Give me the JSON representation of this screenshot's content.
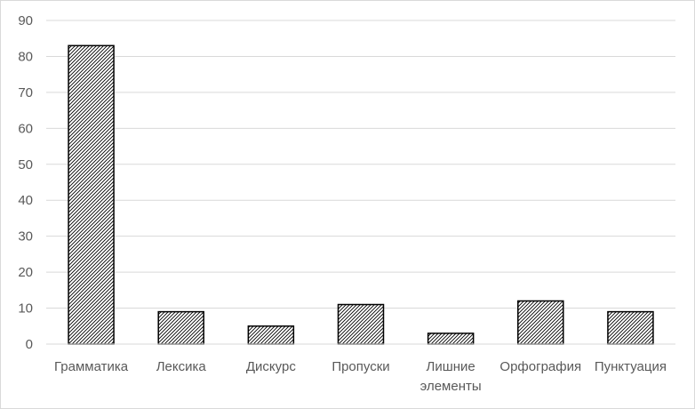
{
  "chart_data": {
    "type": "bar",
    "categories": [
      "Грамматика",
      "Лексика",
      "Дискурс",
      "Пропуски",
      "Лишние элементы",
      "Орфография",
      "Пунктуация"
    ],
    "category_lines": [
      [
        "Грамматика"
      ],
      [
        "Лексика"
      ],
      [
        "Дискурс"
      ],
      [
        "Пропуски"
      ],
      [
        "Лишние",
        "элементы"
      ],
      [
        "Орфография"
      ],
      [
        "Пунктуация"
      ]
    ],
    "values": [
      83,
      9,
      5,
      11,
      3,
      12,
      9
    ],
    "ylim": [
      0,
      90
    ],
    "yticks": [
      0,
      10,
      20,
      30,
      40,
      50,
      60,
      70,
      80,
      90
    ],
    "grid": true,
    "bar_fill": "hatched",
    "colors": {
      "bar_stroke": "#000000",
      "grid": "#d9d9d9",
      "text": "#595959"
    }
  }
}
